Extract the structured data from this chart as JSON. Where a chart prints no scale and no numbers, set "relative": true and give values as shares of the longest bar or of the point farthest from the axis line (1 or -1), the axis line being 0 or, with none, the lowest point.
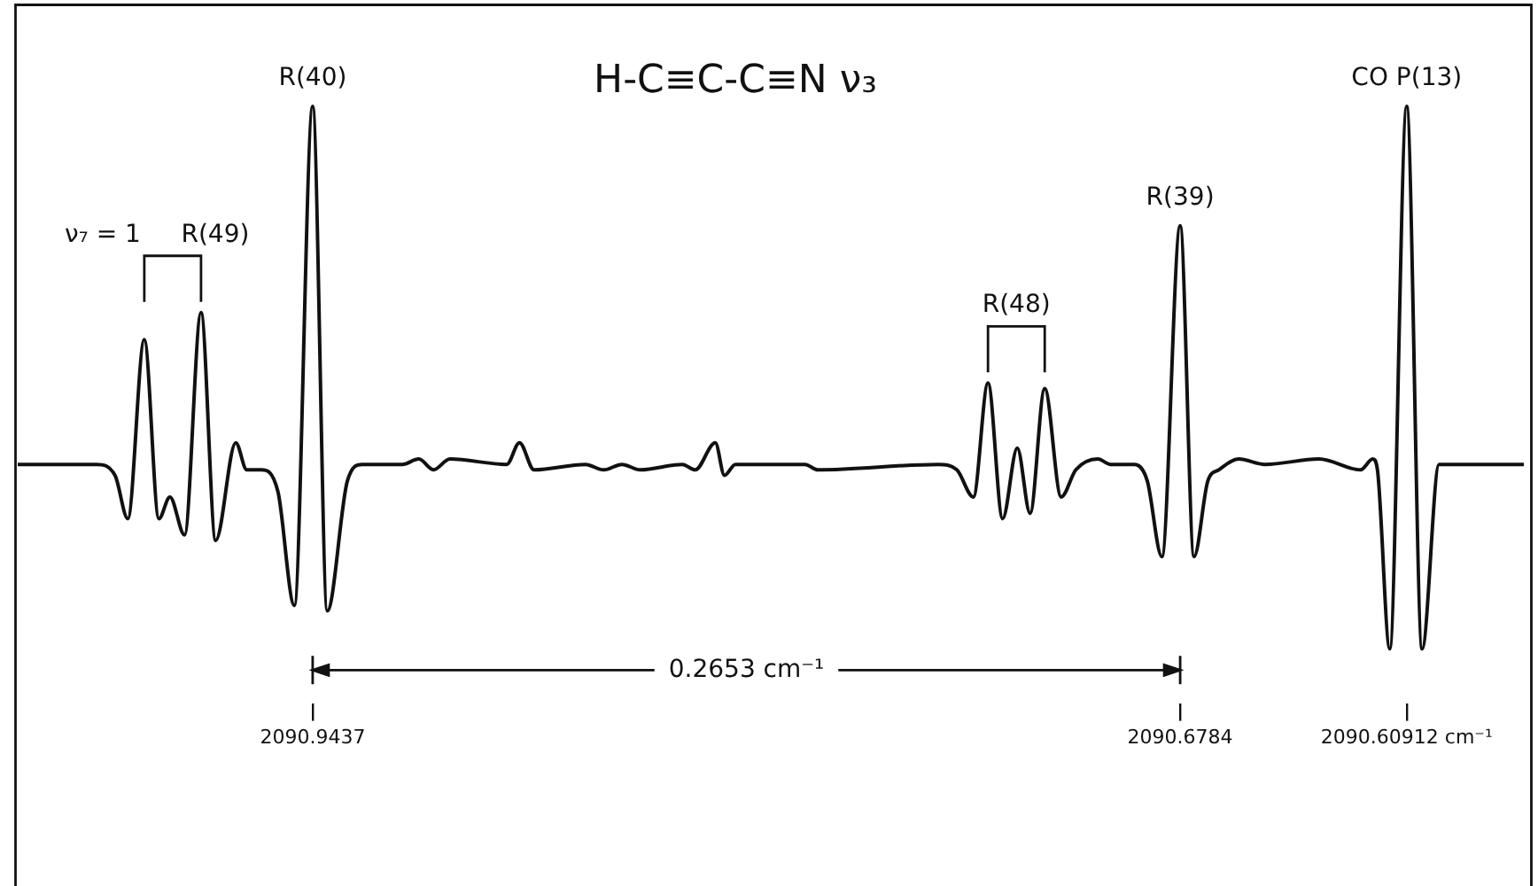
{
  "chart_data": {
    "type": "line",
    "title": "H-C≡C-C≡N ν₃",
    "relative": true,
    "color": "#111111",
    "marker": "none",
    "line_style": "solid",
    "xlim": [
      2091.0339,
      2090.5733
    ],
    "xticks": [
      2090.9437,
      2090.6784,
      {
        "value": 2090.60912,
        "label": "2090.60912 cm⁻¹"
      }
    ],
    "x": [
      2091.03381,
      2091.00975,
      2091.00415,
      2091.00023,
      2090.99519,
      2090.99072,
      2090.98736,
      2090.98288,
      2090.97784,
      2090.97336,
      2090.96721,
      2090.96385,
      2090.95937,
      2090.95433,
      2090.9493,
      2090.9437,
      2090.93922,
      2090.93307,
      2090.92859,
      2090.91627,
      2090.91124,
      2090.90676,
      2090.90172,
      2090.88437,
      2090.88045,
      2090.87598,
      2090.8603,
      2090.85471,
      2090.84911,
      2090.84351,
      2090.83064,
      2090.82672,
      2090.82056,
      2090.81777,
      2090.81441,
      2090.79314,
      2090.78922,
      2090.75228,
      2090.74668,
      2090.74164,
      2090.73717,
      2090.73269,
      2090.72821,
      2090.72429,
      2090.71982,
      2090.71478,
      2090.7103,
      2090.70358,
      2090.69967,
      2090.69239,
      2090.68847,
      2090.68399,
      2090.6784,
      2090.67416,
      2090.66992,
      2090.66662,
      2090.66049,
      2090.65248,
      2090.63598,
      2090.62326,
      2090.61949,
      2090.61807,
      2090.6143,
      2090.60912,
      2090.60441,
      2090.59922,
      2090.59121,
      2090.5733
    ],
    "values": [
      0.34,
      0.34,
      0.32,
      0.24,
      0.57,
      0.24,
      0.28,
      0.21,
      0.62,
      0.2,
      0.38,
      0.33,
      0.33,
      0.29,
      0.08,
      1,
      0.07,
      0.31,
      0.34,
      0.34,
      0.35,
      0.33,
      0.35,
      0.34,
      0.38,
      0.33,
      0.34,
      0.33,
      0.34,
      0.33,
      0.34,
      0.33,
      0.38,
      0.32,
      0.34,
      0.34,
      0.33,
      0.34,
      0.33,
      0.28,
      0.49,
      0.24,
      0.37,
      0.25,
      0.48,
      0.28,
      0.33,
      0.35,
      0.34,
      0.34,
      0.31,
      0.17,
      0.78,
      0.17,
      0.31,
      0.33,
      0.35,
      0.34,
      0.35,
      0.33,
      0.35,
      0.33,
      0,
      1,
      0,
      0.34,
      0.34,
      0.34
    ],
    "annotations": [
      {
        "text": "R(40)",
        "x": 2090.9437,
        "y": 1
      },
      {
        "text": "R(49)",
        "x": 2090.97784,
        "y": 0.62
      },
      {
        "text": "R(48)",
        "x": 2090.71982,
        "y": 0.48
      },
      {
        "text": "R(39)",
        "x": 2090.6784,
        "y": 0.78
      },
      {
        "text": "CO P(13)",
        "x": 2090.60912,
        "y": 1
      },
      "ν₇ = 1",
      "0.2653 cm⁻¹"
    ]
  }
}
